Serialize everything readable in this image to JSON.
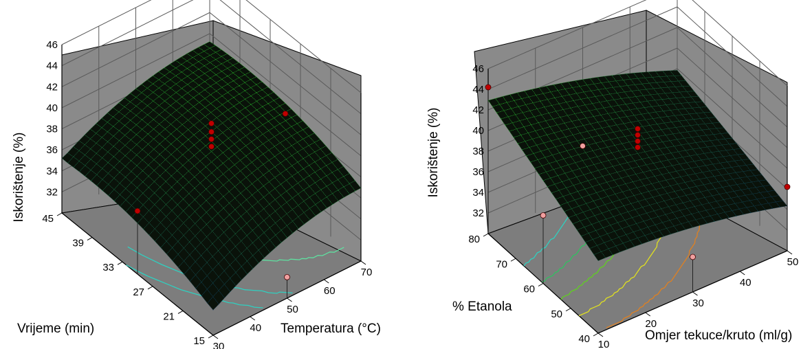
{
  "chart_data": [
    {
      "type": "surface",
      "zlabel": "Iskorištenje (%)",
      "xlabel": "Temperatura (°C)",
      "ylabel": "Vrijeme (min)",
      "zticks": [
        "32",
        "34",
        "36",
        "38",
        "40",
        "42",
        "44",
        "46"
      ],
      "xticks": [
        "30",
        "40",
        "50",
        "60",
        "70"
      ],
      "yticks": [
        "15",
        "21",
        "27",
        "33",
        "39",
        "45"
      ],
      "xlim": [
        30,
        70
      ],
      "ylim": [
        15,
        45
      ],
      "zlim": [
        30,
        46
      ],
      "surface_peak": {
        "x": 55,
        "y": 30,
        "z": 38.6
      },
      "surface_corners": {
        "x30_y15": 32.4,
        "x70_y15": 35.9,
        "x30_y45": 35.2,
        "x70_y45": 38.2
      },
      "points_above": [
        {
          "x": 30,
          "y": 30,
          "z": 36.0
        },
        {
          "x": 70,
          "y": 30,
          "z": 38.2
        },
        {
          "x": 50,
          "y": 30,
          "z": 40.8
        },
        {
          "x": 50,
          "y": 30,
          "z": 40.0
        },
        {
          "x": 50,
          "y": 30,
          "z": 39.3
        },
        {
          "x": 50,
          "y": 30,
          "z": 38.6
        }
      ],
      "points_below": [
        {
          "x": 50,
          "y": 15,
          "z": 32.0
        }
      ],
      "contour_colors": [
        "#2fd0c0",
        "#2fd0c0",
        "#5fe0a0"
      ],
      "surface_color": "#1e7d1e",
      "point_color_above": "#c00000",
      "point_color_below": "#f0a0a0"
    },
    {
      "type": "surface",
      "zlabel": "Iskorištenje (%)",
      "xlabel": "Omjer tekuce/kruto (ml/g)",
      "ylabel": "% Etanola",
      "zticks": [
        "32",
        "34",
        "36",
        "38",
        "40",
        "42",
        "44",
        "46"
      ],
      "xticks": [
        "10",
        "20",
        "30",
        "40",
        "50"
      ],
      "yticks": [
        "40",
        "50",
        "60",
        "70",
        "80"
      ],
      "xlim": [
        10,
        50
      ],
      "ylim": [
        40,
        80
      ],
      "zlim": [
        30,
        46
      ],
      "surface_corners": {
        "x10_y40": 37.5,
        "x50_y40": 35.0,
        "x10_y80": 43.4,
        "x50_y80": 38.5
      },
      "points_above": [
        {
          "x": 10,
          "y": 80,
          "z": 44.2
        },
        {
          "x": 30,
          "y": 60,
          "z": 41.0
        },
        {
          "x": 30,
          "y": 60,
          "z": 40.4
        },
        {
          "x": 30,
          "y": 60,
          "z": 39.8
        },
        {
          "x": 30,
          "y": 60,
          "z": 39.2
        },
        {
          "x": 50,
          "y": 40,
          "z": 36.2
        }
      ],
      "points_below": [
        {
          "x": 10,
          "y": 60,
          "z": 36.6
        },
        {
          "x": 30,
          "y": 80,
          "z": 34.5
        },
        {
          "x": 30,
          "y": 40,
          "z": 33.4
        }
      ],
      "contour_colors": [
        "#e08020",
        "#e0e020",
        "#60d020",
        "#30c060",
        "#2fd0c0"
      ],
      "surface_color": "#1e7d1e",
      "point_color_above": "#c00000",
      "point_color_below": "#f0a0a0"
    }
  ]
}
